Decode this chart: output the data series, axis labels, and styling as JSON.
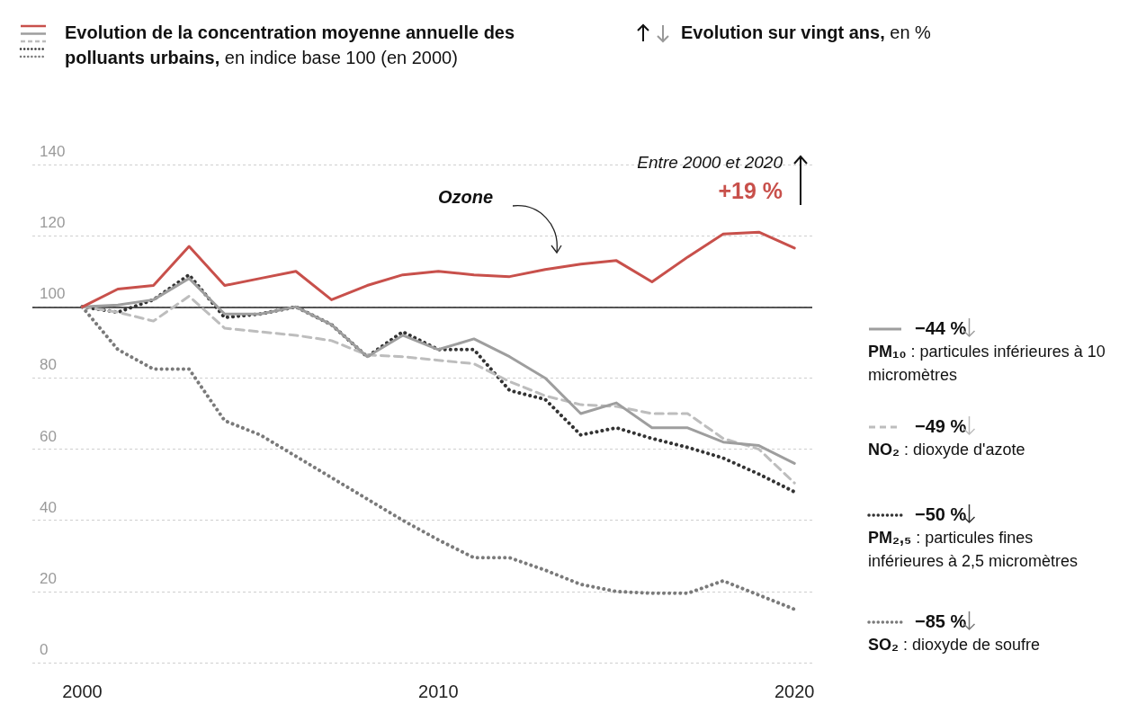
{
  "chart_data": {
    "type": "line",
    "title": "Evolution de la concentration moyenne annuelle des polluants urbains,",
    "subtitle": "en indice base 100 (en 2000)",
    "x": [
      2000,
      2001,
      2002,
      2003,
      2004,
      2005,
      2006,
      2007,
      2008,
      2009,
      2010,
      2011,
      2012,
      2013,
      2014,
      2015,
      2016,
      2017,
      2018,
      2019,
      2020
    ],
    "series": [
      {
        "name": "Ozone",
        "color": "#c8504b",
        "line_style": "solid",
        "values": [
          100,
          105,
          106,
          117,
          106,
          108,
          110,
          102,
          106,
          109,
          110,
          109,
          108.5,
          110.5,
          112,
          113,
          107,
          114,
          120.5,
          121,
          116.5
        ]
      },
      {
        "name": "PM₁₀ : particules inférieures à 10 micromètres",
        "color": "#9e9e9e",
        "line_style": "solid",
        "values": [
          100,
          100.5,
          102,
          108,
          98,
          98,
          100,
          95,
          86,
          92,
          88,
          91,
          86,
          80,
          70,
          73,
          66,
          66,
          62,
          61,
          56
        ]
      },
      {
        "name": "NO₂ : dioxyde d'azote",
        "color": "#bdbdbd",
        "line_style": "dashed",
        "values": [
          100,
          98.5,
          96,
          103,
          94,
          93,
          92,
          90.5,
          86.5,
          86,
          85,
          84,
          79,
          75,
          72.5,
          72,
          70,
          70,
          63,
          60,
          50.5
        ]
      },
      {
        "name": "PM₂,₅ : particules fines inférieures à 2,5 micromètres",
        "color": "#333333",
        "line_style": "dotted",
        "values": [
          100,
          98.5,
          102,
          109,
          97,
          98,
          100,
          95,
          86,
          93,
          88,
          88,
          76.5,
          74,
          64,
          66,
          63,
          60.5,
          57.5,
          53,
          48
        ]
      },
      {
        "name": "SO₂ : dioxyde de soufre",
        "color": "#7a7a7a",
        "line_style": "dotted",
        "values": [
          100,
          88,
          82.5,
          82.5,
          68,
          64,
          58,
          52,
          46,
          40,
          34.5,
          29.5,
          29.5,
          26,
          22,
          20,
          19.5,
          19.5,
          23,
          19,
          15
        ]
      }
    ],
    "xlim": [
      1998.6,
      2020.5
    ],
    "xticks": [
      2000,
      2010,
      2020
    ],
    "ylim": [
      0,
      140
    ],
    "yticks": [
      0,
      20,
      40,
      60,
      80,
      100,
      120,
      140
    ],
    "grid": "y",
    "marker": "none",
    "legend": "right",
    "ref_lines": [
      {
        "axis": "y",
        "value": 100,
        "color": "#222222"
      }
    ],
    "annotations": [
      "Entre 2000 et 2020",
      "+19 %",
      "Evolution sur vingt ans, en %",
      "−44 %",
      "−49 %",
      "−50 %",
      "−85 %"
    ]
  }
}
